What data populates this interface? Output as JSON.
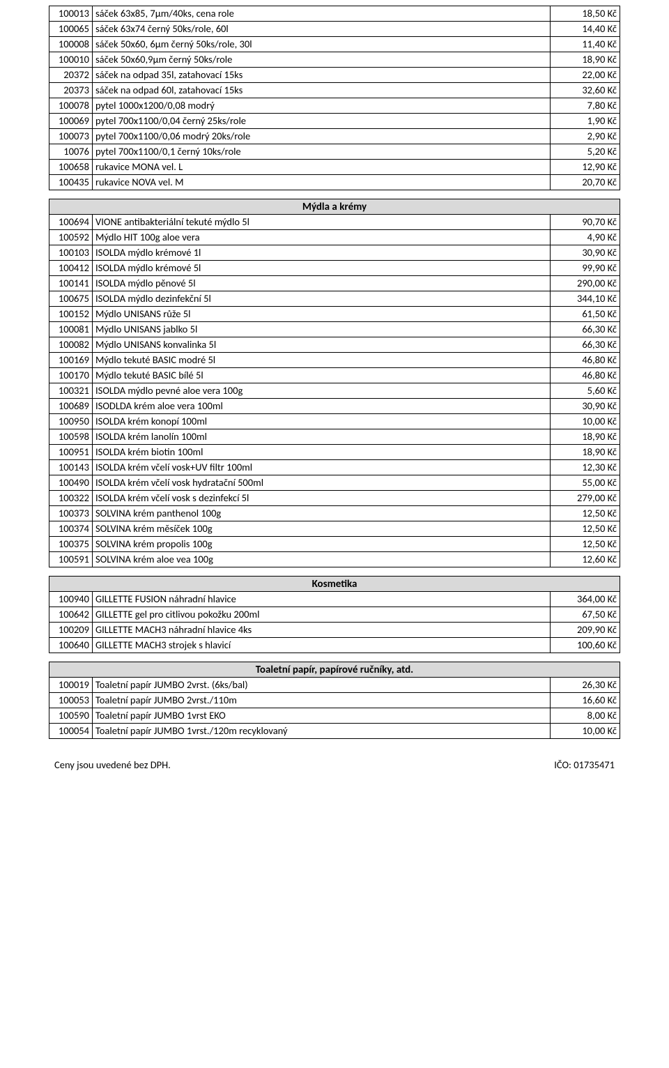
{
  "tables": [
    {
      "header": null,
      "rows": [
        [
          "100013",
          "sáček 63x85, 7µm/40ks, cena role",
          "18,50 Kč"
        ],
        [
          "100065",
          "sáček 63x74 černý 50ks/role, 60l",
          "14,40 Kč"
        ],
        [
          "100008",
          "sáček 50x60, 6µm černý 50ks/role, 30l",
          "11,40 Kč"
        ],
        [
          "100010",
          "sáček 50x60,9µm černý 50ks/role",
          "18,90 Kč"
        ],
        [
          "20372",
          "sáček na odpad 35l, zatahovací 15ks",
          "22,00 Kč"
        ],
        [
          "20373",
          "sáček na odpad 60l, zatahovací 15ks",
          "32,60 Kč"
        ],
        [
          "100078",
          "pytel 1000x1200/0,08 modrý",
          "7,80 Kč"
        ],
        [
          "100069",
          "pytel 700x1100/0,04 černý 25ks/role",
          "1,90 Kč"
        ],
        [
          "100073",
          "pytel 700x1100/0,06 modrý 20ks/role",
          "2,90 Kč"
        ],
        [
          "10076",
          "pytel 700x1100/0,1 černý 10ks/role",
          "5,20 Kč"
        ],
        [
          "100658",
          "rukavice MONA vel. L",
          "12,90 Kč"
        ],
        [
          "100435",
          "rukavice NOVA vel. M",
          "20,70 Kč"
        ]
      ]
    },
    {
      "header": "Mýdla a krémy",
      "rows": [
        [
          "100694",
          "VIONE antibakteriální tekuté mýdlo 5l",
          "90,70 Kč"
        ],
        [
          "100592",
          "Mýdlo HIT 100g aloe vera",
          "4,90 Kč"
        ],
        [
          "100103",
          "ISOLDA mýdlo krémové 1l",
          "30,90 Kč"
        ],
        [
          "100412",
          "ISOLDA mýdlo krémové 5l",
          "99,90 Kč"
        ],
        [
          "100141",
          "ISOLDA mýdlo pěnové 5l",
          "290,00 Kč"
        ],
        [
          "100675",
          "ISOLDA mýdlo dezinfekční 5l",
          "344,10 Kč"
        ],
        [
          "100152",
          "Mýdlo UNISANS růže 5l",
          "61,50 Kč"
        ],
        [
          "100081",
          "Mýdlo UNISANS jablko 5l",
          "66,30 Kč"
        ],
        [
          "100082",
          "Mýdlo UNISANS konvalinka 5l",
          "66,30 Kč"
        ],
        [
          "100169",
          "Mýdlo tekuté BASIC modré 5l",
          "46,80 Kč"
        ],
        [
          "100170",
          "Mýdlo tekuté BASIC bílé 5l",
          "46,80 Kč"
        ],
        [
          "100321",
          "ISOLDA mýdlo pevné aloe vera 100g",
          "5,60 Kč"
        ],
        [
          "100689",
          "ISODLDA krém aloe vera 100ml",
          "30,90 Kč"
        ],
        [
          "100950",
          "ISOLDA krém konopí 100ml",
          "10,00 Kč"
        ],
        [
          "100598",
          "ISOLDA krém lanolín 100ml",
          "18,90 Kč"
        ],
        [
          "100951",
          "ISOLDA krém biotin 100ml",
          "18,90 Kč"
        ],
        [
          "100143",
          "ISOLDA krém včelí vosk+UV filtr 100ml",
          "12,30 Kč"
        ],
        [
          "100490",
          "ISOLDA krém včelí vosk hydratační 500ml",
          "55,00 Kč"
        ],
        [
          "100322",
          "ISOLDA krém včelí vosk s dezinfekcí 5l",
          "279,00 Kč"
        ],
        [
          "100373",
          "SOLVINA krém panthenol 100g",
          "12,50 Kč"
        ],
        [
          "100374",
          "SOLVINA krém měsíček 100g",
          "12,50 Kč"
        ],
        [
          "100375",
          "SOLVINA krém propolis 100g",
          "12,50 Kč"
        ],
        [
          "100591",
          "SOLVINA krém aloe vea 100g",
          "12,60 Kč"
        ]
      ]
    },
    {
      "header": "Kosmetika",
      "rows": [
        [
          "100940",
          "GILLETTE FUSION náhradní hlavice",
          "364,00 Kč"
        ],
        [
          "100642",
          "GILLETTE gel pro citlivou pokožku 200ml",
          "67,50 Kč"
        ],
        [
          "100209",
          "GILLETTE MACH3 náhradní hlavice 4ks",
          "209,90 Kč"
        ],
        [
          "100640",
          "GILLETTE MACH3 strojek s hlavicí",
          "100,60 Kč"
        ]
      ]
    },
    {
      "header": "Toaletní papír, papírové ručníky, atd.",
      "rows": [
        [
          "100019",
          "Toaletní papír JUMBO 2vrst. (6ks/bal)",
          "26,30 Kč"
        ],
        [
          "100053",
          "Toaletní papír JUMBO 2vrst./110m",
          "16,60 Kč"
        ],
        [
          "100590",
          "Toaletní papír JUMBO 1vrst EKO",
          "8,00 Kč"
        ],
        [
          "100054",
          "Toaletní papír JUMBO 1vrst./120m recyklovaný",
          "10,00 Kč"
        ]
      ]
    }
  ],
  "footer": {
    "left": "Ceny jsou uvedené bez DPH.",
    "right": "IČO: 01735471"
  }
}
